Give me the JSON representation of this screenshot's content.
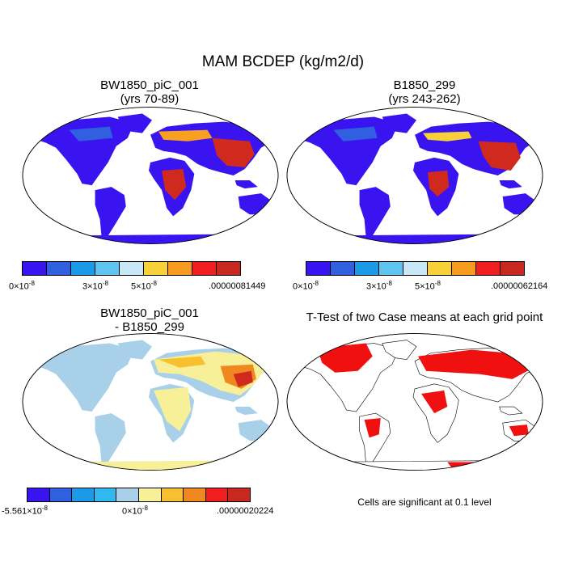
{
  "figure_title": "MAM BCDEP (kg/m2/d)",
  "panels": [
    {
      "title_line1": "BW1850_piC_001",
      "title_line2": "(yrs 70-89)"
    },
    {
      "title_line1": "B1850_299",
      "title_line2": "(yrs 243-262)"
    },
    {
      "title_line1": "BW1850_piC_001",
      "title_line2": "- B1850_299"
    },
    {
      "title_line1": "T-Test of two Case means at each grid point",
      "title_line2": ""
    }
  ],
  "colorbars": {
    "abs1": {
      "colors": [
        "#3a14f0",
        "#3060e0",
        "#1a9ae8",
        "#60c4f0",
        "#c8e8f8",
        "#f8d038",
        "#f89a20",
        "#f01e1e",
        "#c8281e"
      ],
      "label_left": "0×10",
      "label_left_exp": "-8",
      "label_mid1": "3×10",
      "label_mid1_exp": "-8",
      "label_mid2": "5×10",
      "label_mid2_exp": "-8",
      "label_right": ".00000081449"
    },
    "abs2": {
      "colors": [
        "#3a14f0",
        "#3060e0",
        "#1a9ae8",
        "#60c4f0",
        "#c8e8f8",
        "#f8d038",
        "#f89a20",
        "#f01e1e",
        "#c8281e"
      ],
      "label_left": "0×10",
      "label_left_exp": "-8",
      "label_mid1": "3×10",
      "label_mid1_exp": "-8",
      "label_mid2": "5×10",
      "label_mid2_exp": "-8",
      "label_right": ".00000062164"
    },
    "diff": {
      "colors": [
        "#3a14f0",
        "#3060e0",
        "#1a9ae8",
        "#30b8f0",
        "#a8d0e8",
        "#f8f098",
        "#f8c030",
        "#f08820",
        "#f01e1e",
        "#c8281e"
      ],
      "label_left": "-5.561×10",
      "label_left_exp": "-8",
      "label_mid": "0×10",
      "label_mid_exp": "-8",
      "label_right": ".00000020224"
    }
  },
  "significance_note": "Cells are significant at 0.1 level",
  "colors": {
    "ocean": "#ffffff",
    "land_low": "#3a14f0",
    "land_high": "#c8281e",
    "diff_neutral": "#a8d0e8",
    "diff_pos": "#f8f098",
    "significant": "#f01010"
  }
}
